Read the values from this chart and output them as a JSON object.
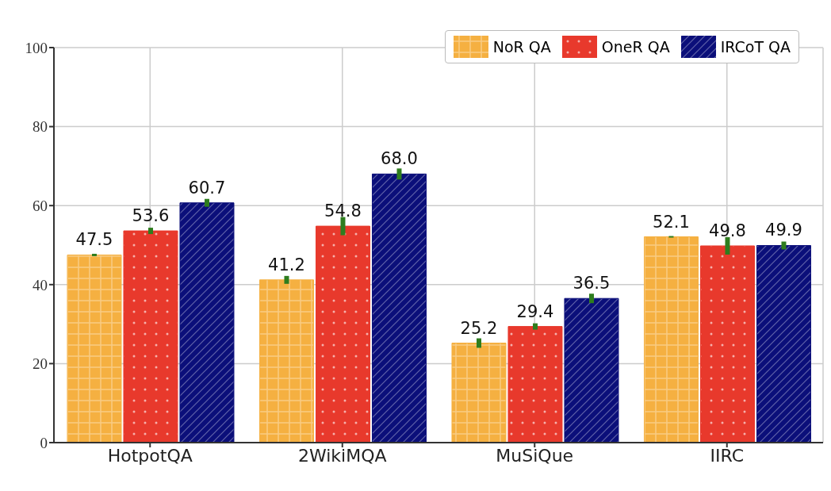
{
  "chart_data": {
    "type": "bar",
    "categories": [
      "HotpotQA",
      "2WikiMQA",
      "MuSiQue",
      "IIRC"
    ],
    "series": [
      {
        "name": "NoR QA",
        "color": "#f5b041",
        "values": [
          47.5,
          41.2,
          25.2,
          52.1
        ],
        "value_labels": [
          "47.5",
          "41.2",
          "25.2",
          "52.1"
        ],
        "errors": [
          0.3,
          1.0,
          1.2,
          0.2
        ]
      },
      {
        "name": "OneR QA",
        "color": "#e8392c",
        "values": [
          53.6,
          54.8,
          29.4,
          49.8
        ],
        "value_labels": [
          "53.6",
          "54.8",
          "29.4",
          "49.8"
        ],
        "errors": [
          0.8,
          2.3,
          0.8,
          2.2
        ]
      },
      {
        "name": "IRCoT QA",
        "color": "#0b0f7a",
        "values": [
          60.7,
          68.0,
          36.5,
          49.9
        ],
        "value_labels": [
          "60.7",
          "68.0",
          "36.5",
          "49.9"
        ],
        "errors": [
          1.0,
          1.4,
          1.2,
          1.0
        ]
      }
    ],
    "ylim": [
      0,
      100
    ],
    "yticks": [
      0,
      20,
      40,
      60,
      80,
      100
    ],
    "grid": true,
    "legend": "top right"
  }
}
